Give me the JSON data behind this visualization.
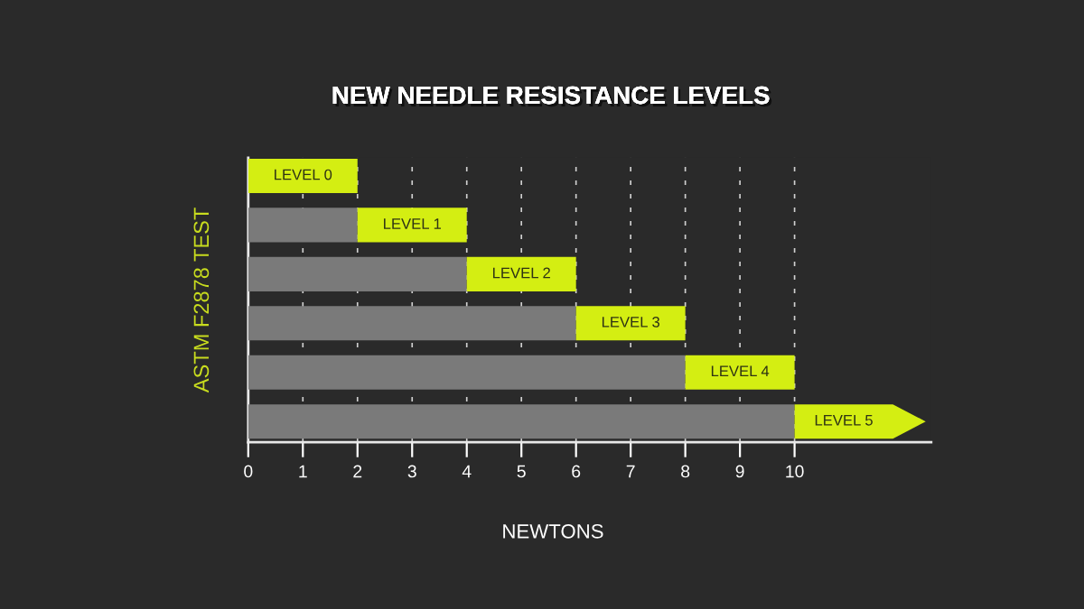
{
  "chart_data": {
    "type": "bar",
    "orientation": "horizontal",
    "stacked": true,
    "title": "NEW NEEDLE RESISTANCE LEVELS",
    "xlabel": "NEWTONS",
    "ylabel": "ASTM F2878 TEST",
    "categories": [
      null,
      null,
      null,
      null,
      null,
      null
    ],
    "series": [
      {
        "color": "#7a7a7a",
        "values": [
          0,
          2,
          4,
          6,
          8,
          10
        ]
      },
      {
        "color": "#d4ee12",
        "values": [
          2,
          2,
          2,
          2,
          2,
          2.4
        ],
        "value_labels": [
          "LEVEL 0",
          "LEVEL 1",
          "LEVEL 2",
          "LEVEL 3",
          "LEVEL 4",
          "LEVEL 5"
        ]
      }
    ],
    "xlim": [
      0,
      12.5
    ],
    "xticks": [
      0,
      1,
      2,
      3,
      4,
      5,
      6,
      7,
      8,
      9,
      10
    ],
    "grid": "x",
    "tick_labels": "x"
  }
}
